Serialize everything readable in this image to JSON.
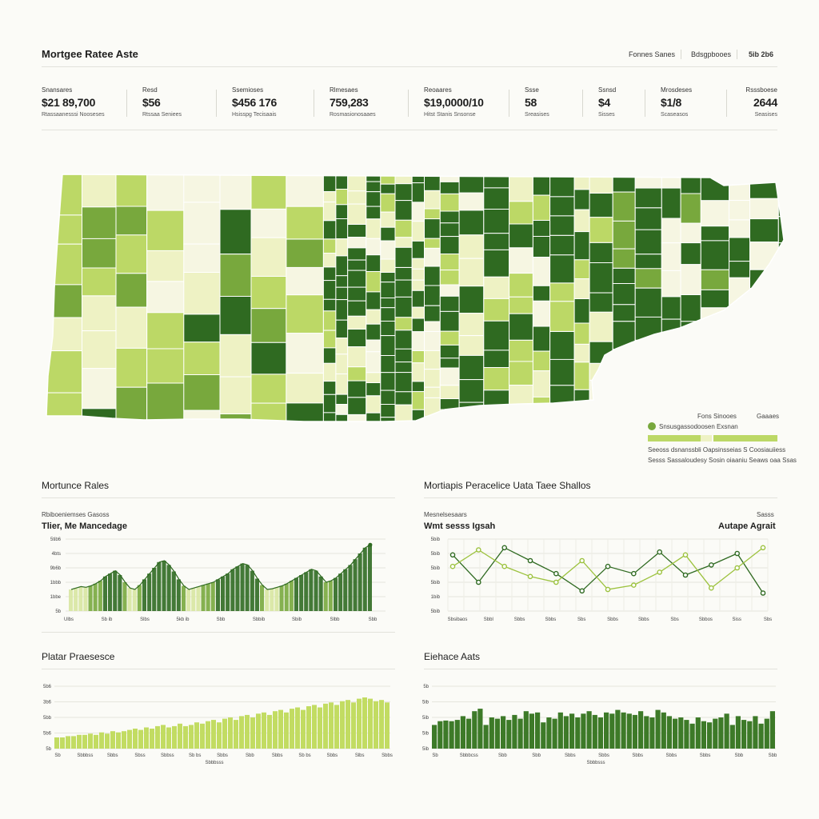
{
  "header": {
    "title": "Mortgee Ratee Aste",
    "links": [
      "Fonnes Sanes",
      "Bdsgpbooes",
      "5ib 2b6"
    ]
  },
  "stats": [
    {
      "label": "Snansares",
      "value": "$21 89,700",
      "sub": "Rtassaanesssi Nooseses"
    },
    {
      "label": "Resd",
      "value": "$56",
      "sub": "Rtssaa Seniees"
    },
    {
      "label": "Ssemioses",
      "value": "$456 176",
      "sub": "Hsisspg Tecisaais"
    },
    {
      "label": "Rlmesaes",
      "value": "759,283",
      "sub": "Rosmasionosaaes"
    },
    {
      "label": "Reoaares",
      "value": "$19,0000/10",
      "sub": "Hitst Stanis Snsonse"
    },
    {
      "label": "Ssse",
      "value": "58",
      "sub": "Sreasises"
    },
    {
      "label": "Ssnsd",
      "value": "$4",
      "sub": "Sisses"
    },
    {
      "label": "Mrosdeses",
      "value": "$1/8",
      "sub": "Scaseasos"
    },
    {
      "label": "Rsssboese",
      "value": "2644",
      "sub": "Seasises"
    }
  ],
  "map_legend": {
    "col1": "Fons Sinooes",
    "col2": "Gaaaes",
    "item": "Snsusgassodoosen Exsnan",
    "note1": "Seeoss dsnanssbli Oapsinsseias S Coosiauiiess",
    "note2": "Sesss Sassaloudesy Sosin oiaaniu Seaws oaa Ssas"
  },
  "colors": {
    "dark": "#2f6a21",
    "mid": "#78a83d",
    "light": "#bcd866",
    "pale": "#eef2c4",
    "cream": "#f6f6e2"
  },
  "panels": [
    {
      "title": "Mortunce Rales",
      "caption": "Rbiboeniemses Gasoss",
      "subtitle": "Tlier, Me Mancedage"
    },
    {
      "title": "Mortiapis Peracelice Uata Taee Shallos",
      "caption": "Mesnelsesaars",
      "subtitle": "Wmt sesss Igsah",
      "caption_right": "Sasss",
      "subtitle_right": "Autape Agrait"
    },
    {
      "title": "Platar Praesesce"
    },
    {
      "title": "Eiehace Aats"
    }
  ],
  "chart_data": [
    {
      "type": "area",
      "title": "Tlier, Me Mancedage",
      "ylabels": [
        "5tib6",
        "4bts",
        "9b6b",
        "1bbb",
        "1bbe",
        "5b"
      ],
      "xlabels": [
        "Ulbs",
        "Sb ib",
        "Slbs",
        "5kb ib",
        "Sbb",
        "Sbbib",
        "Sbib",
        "Slbb",
        "Sbb"
      ],
      "values": [
        30,
        32,
        34,
        33,
        35,
        38,
        42,
        48,
        52,
        56,
        50,
        40,
        32,
        30,
        36,
        44,
        52,
        60,
        68,
        70,
        64,
        55,
        44,
        35,
        30,
        32,
        34,
        36,
        38,
        40,
        44,
        48,
        52,
        58,
        62,
        66,
        64,
        56,
        45,
        36,
        30,
        31,
        33,
        35,
        38,
        42,
        46,
        50,
        54,
        58,
        56,
        48,
        40,
        42,
        46,
        52,
        58,
        64,
        72,
        80,
        88,
        92
      ],
      "ylim": [
        0,
        100
      ]
    },
    {
      "type": "line",
      "title": "Wmt sesss Igsah",
      "ylabels": [
        "5bib",
        "5bib",
        "5bib",
        "5bib",
        "1bib",
        "5bib"
      ],
      "xlabels": [
        "Sbsibaos",
        "Sbbl",
        "Sbbs",
        "Sbbs",
        "Sbs",
        "Sbbs",
        "Sbbs",
        "Sbs",
        "Sbbos",
        "Siss",
        "Sbs"
      ],
      "series": [
        {
          "name": "",
          "x": [
            0,
            1,
            2,
            3,
            4,
            5,
            6,
            7,
            8,
            9,
            10,
            11,
            12
          ],
          "values": [
            78,
            40,
            88,
            70,
            52,
            28,
            62,
            52,
            82,
            50,
            64,
            80,
            25
          ]
        },
        {
          "name": "",
          "x": [
            0,
            1,
            2,
            3,
            4,
            5,
            6,
            7,
            8,
            9,
            10,
            11,
            12
          ],
          "values": [
            62,
            85,
            62,
            48,
            40,
            70,
            30,
            36,
            54,
            78,
            32,
            60,
            88
          ]
        }
      ],
      "ylim": [
        0,
        100
      ]
    },
    {
      "type": "bar",
      "title": "Platar Praesesce",
      "ylabels": [
        "5b6",
        "3b6",
        "5bb",
        "5b6",
        "5b"
      ],
      "xlabels": [
        "Sb",
        "Sbbbss",
        "Sbbs",
        "Sbss",
        "Sbbss",
        "Sb bs",
        "Sbbs",
        "Sbb",
        "Sbbs",
        "Sb bs",
        "Sbbs",
        "Slbs",
        "Sbbs"
      ],
      "xcaption": "Sbbbsss",
      "values": [
        18,
        18,
        20,
        20,
        22,
        22,
        24,
        22,
        26,
        24,
        28,
        26,
        28,
        30,
        32,
        30,
        34,
        32,
        36,
        38,
        34,
        36,
        40,
        36,
        38,
        42,
        40,
        44,
        46,
        42,
        48,
        50,
        46,
        52,
        54,
        50,
        56,
        58,
        54,
        60,
        62,
        58,
        64,
        66,
        62,
        68,
        70,
        66,
        72,
        74,
        70,
        76,
        78,
        74,
        80,
        82,
        80,
        76,
        78,
        74
      ]
    },
    {
      "type": "bar",
      "title": "Eiehace Aats",
      "ylabels": [
        "5b",
        "5ib",
        "5ib",
        "5ib",
        "5ib"
      ],
      "xlabels": [
        "Sb",
        "Sbbbcss",
        "Sbb",
        "Sbb",
        "Sbbs",
        "Sbbs",
        "Sbbs",
        "Sbbs",
        "Sbbs",
        "Sbb",
        "Sbb"
      ],
      "xcaption": "Sbbbsss",
      "values": [
        38,
        44,
        45,
        44,
        46,
        52,
        48,
        60,
        64,
        38,
        50,
        48,
        52,
        46,
        54,
        48,
        60,
        56,
        58,
        42,
        50,
        48,
        58,
        52,
        56,
        50,
        56,
        60,
        54,
        50,
        58,
        56,
        62,
        58,
        56,
        54,
        60,
        52,
        50,
        62,
        58,
        52,
        48,
        50,
        46,
        40,
        50,
        44,
        42,
        48,
        50,
        56,
        38,
        52,
        46,
        44,
        52,
        40,
        48,
        60
      ]
    }
  ]
}
